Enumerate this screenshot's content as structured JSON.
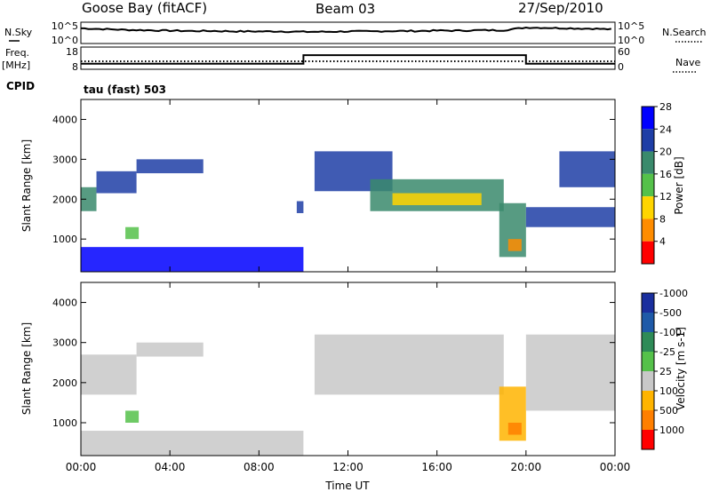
{
  "header": {
    "station": "Goose Bay (fitACF)",
    "beam": "Beam 03",
    "date": "27/Sep/2010"
  },
  "panel_labels": {
    "nsky": "N.Sky",
    "nsearch": "N.Search",
    "freq": "Freq.",
    "freq_unit": "[MHz]",
    "nave": "Nave",
    "cpid": "CPID",
    "cpid_value": "tau (fast) 503"
  },
  "chart_data": [
    {
      "type": "line",
      "name": "noise",
      "left_ticks": [
        "10^5",
        "10^0"
      ],
      "right_ticks": [
        "10^5",
        "10^0"
      ],
      "x": [
        0,
        1,
        2,
        3,
        4,
        5,
        6,
        7,
        8,
        9,
        10,
        11,
        12,
        13,
        14,
        15,
        16,
        17,
        18,
        19,
        20,
        21,
        22,
        23,
        24
      ],
      "nsky_log10": [
        3.9,
        3.7,
        3.5,
        3.4,
        3.3,
        3.2,
        3.2,
        3.1,
        3.1,
        3.1,
        3.0,
        3.0,
        3.1,
        3.1,
        3.2,
        3.2,
        3.3,
        3.3,
        3.4,
        3.4,
        4.1,
        4.0,
        3.9,
        3.8,
        3.6
      ]
    },
    {
      "type": "line",
      "name": "frequency",
      "left_ticks": [
        "18",
        "8"
      ],
      "right_ticks": [
        "60",
        "0"
      ],
      "freq_mhz": [
        [
          0,
          10
        ],
        [
          10,
          10
        ],
        [
          10,
          14.6
        ],
        [
          20,
          14.6
        ],
        [
          20,
          10
        ],
        [
          24,
          10
        ]
      ],
      "nave": [
        [
          0,
          20
        ],
        [
          24,
          20
        ]
      ]
    },
    {
      "type": "heatmap",
      "name": "power",
      "xlabel": "",
      "ylabel": "Slant Range [km]",
      "xlim": [
        0,
        24
      ],
      "ylim": [
        180,
        4500
      ],
      "yticks": [
        1000,
        2000,
        3000,
        4000
      ],
      "colorbar_label": "Power [dB]",
      "colorbar_ticks": [
        "4",
        "8",
        "12",
        "16",
        "20",
        "24",
        "28"
      ],
      "colors": [
        "#0000ff",
        "#1e3ea6",
        "#3a8a6c",
        "#55c14a",
        "#ffd500",
        "#ff8c00",
        "#ff0000"
      ],
      "regions": [
        {
          "t0": 0.0,
          "t1": 0.7,
          "r0": 1700,
          "r1": 2300,
          "level": 2
        },
        {
          "t0": 0.7,
          "t1": 2.5,
          "r0": 2150,
          "r1": 2700,
          "level": 1
        },
        {
          "t0": 2.5,
          "t1": 5.5,
          "r0": 2650,
          "r1": 3000,
          "level": 1
        },
        {
          "t0": 2.0,
          "t1": 2.6,
          "r0": 1000,
          "r1": 1300,
          "level": 3
        },
        {
          "t0": 0.0,
          "t1": 10.0,
          "r0": 180,
          "r1": 800,
          "level": 0
        },
        {
          "t0": 9.7,
          "t1": 10.0,
          "r0": 1650,
          "r1": 1950,
          "level": 1
        },
        {
          "t0": 10.5,
          "t1": 14.0,
          "r0": 2200,
          "r1": 3200,
          "level": 1
        },
        {
          "t0": 13.0,
          "t1": 19.0,
          "r0": 1700,
          "r1": 2500,
          "level": 2
        },
        {
          "t0": 14.0,
          "t1": 18.0,
          "r0": 1850,
          "r1": 2150,
          "level": 4
        },
        {
          "t0": 18.8,
          "t1": 20.0,
          "r0": 550,
          "r1": 1900,
          "level": 2
        },
        {
          "t0": 19.2,
          "t1": 19.8,
          "r0": 700,
          "r1": 1000,
          "level": 5
        },
        {
          "t0": 20.0,
          "t1": 24.0,
          "r0": 1300,
          "r1": 1800,
          "level": 1
        },
        {
          "t0": 21.5,
          "t1": 24.0,
          "r0": 2300,
          "r1": 3200,
          "level": 1
        }
      ]
    },
    {
      "type": "heatmap",
      "name": "velocity",
      "xlabel": "Time UT",
      "ylabel": "Slant Range [km]",
      "xlim": [
        0,
        24
      ],
      "ylim": [
        180,
        4500
      ],
      "xticks": [
        "00:00",
        "04:00",
        "08:00",
        "12:00",
        "16:00",
        "20:00",
        "00:00"
      ],
      "yticks": [
        1000,
        2000,
        3000,
        4000
      ],
      "colorbar_label": "Velocity [m s-1]",
      "colorbar_ticks": [
        "1000",
        "500",
        "100",
        "25",
        "-25",
        "-100",
        "-500",
        "-1000"
      ],
      "colors": [
        "#1a2f9e",
        "#1e5aa8",
        "#2e8b57",
        "#55c14a",
        "#c8c8c8",
        "#ffb400",
        "#ff7f00",
        "#ff0000"
      ],
      "regions": [
        {
          "t0": 0.0,
          "t1": 2.5,
          "r0": 1700,
          "r1": 2700,
          "level": 4
        },
        {
          "t0": 2.5,
          "t1": 5.5,
          "r0": 2650,
          "r1": 3000,
          "level": 4
        },
        {
          "t0": 2.0,
          "t1": 2.6,
          "r0": 1000,
          "r1": 1300,
          "level": 3
        },
        {
          "t0": 0.0,
          "t1": 10.0,
          "r0": 180,
          "r1": 800,
          "level": 4
        },
        {
          "t0": 10.5,
          "t1": 19.0,
          "r0": 1700,
          "r1": 3200,
          "level": 4
        },
        {
          "t0": 18.8,
          "t1": 20.0,
          "r0": 550,
          "r1": 1900,
          "level": 5
        },
        {
          "t0": 19.2,
          "t1": 19.8,
          "r0": 700,
          "r1": 1000,
          "level": 6
        },
        {
          "t0": 20.0,
          "t1": 24.0,
          "r0": 1300,
          "r1": 3200,
          "level": 4
        }
      ]
    }
  ]
}
